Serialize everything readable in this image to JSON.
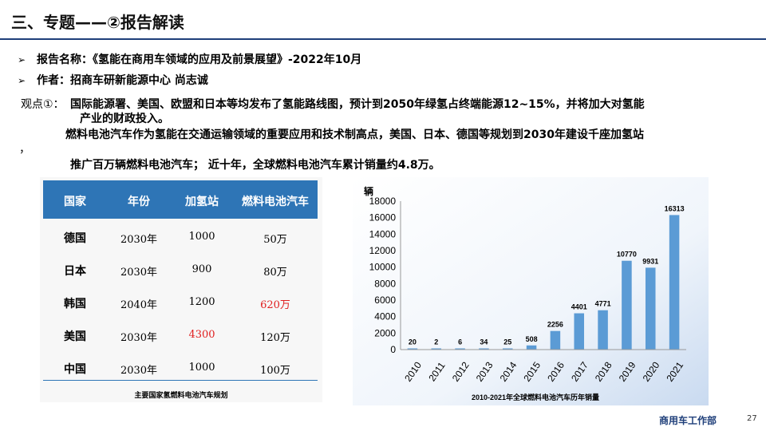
{
  "header": {
    "title": "三、专题——②报告解读"
  },
  "report": {
    "name_line": "报告名称：《氢能在商用车领域的应用及前景展望》-2022年10月",
    "author_line": "作者：招商车研新能源中心 尚志诚"
  },
  "viewpoint": {
    "label": "观点①：",
    "line1": "国际能源署、美国、欧盟和日本等均发布了氢能路线图，预计到2050年绿氢占终端能源12~15%，并将加大对氢能",
    "line2": "产业的财政投入。",
    "line3": "燃料电池汽车作为氢能在交通运输领域的重要应用和技术制高点，美国、日本、德国等规划到2030年建设千座加氢站",
    "line4": "，",
    "line5": "推广百万辆燃料电池汽车；  近十年，全球燃料电池汽车累计销量约4.8万。"
  },
  "table": {
    "headers": [
      "国家",
      "年份",
      "加氢站",
      "燃料电池汽车"
    ],
    "rows": [
      [
        "德国",
        "2030年",
        "1000",
        "50万"
      ],
      [
        "日本",
        "2030年",
        "900",
        "80万"
      ],
      [
        "韩国",
        "2040年",
        "1200",
        "620万"
      ],
      [
        "美国",
        "2030年",
        "4300",
        "120万"
      ],
      [
        "中国",
        "2030年",
        "1000",
        "100万"
      ]
    ],
    "caption": "主要国家氢燃料电池汽车规划",
    "highlight_color": "#e02020",
    "header_color": "#2e75b6"
  },
  "chart_data": {
    "type": "bar",
    "ylabel": "辆",
    "title": "2010-2021年全球燃料电池汽车历年销量",
    "categories": [
      "2010",
      "2011",
      "2012",
      "2013",
      "2014",
      "2015",
      "2016",
      "2017",
      "2018",
      "2019",
      "2020",
      "2021"
    ],
    "values": [
      20,
      2,
      6,
      34,
      25,
      508,
      2256,
      4401,
      4771,
      10770,
      9931,
      16313
    ],
    "ylim": [
      0,
      18000
    ],
    "yticks": [
      "0",
      "2000",
      "4000",
      "6000",
      "8000",
      "10000",
      "12000",
      "14000",
      "16000",
      "18000"
    ],
    "bar_color": "#5b9bd5",
    "grid": false
  },
  "footer": {
    "department": "商用车工作部",
    "page": "27"
  }
}
